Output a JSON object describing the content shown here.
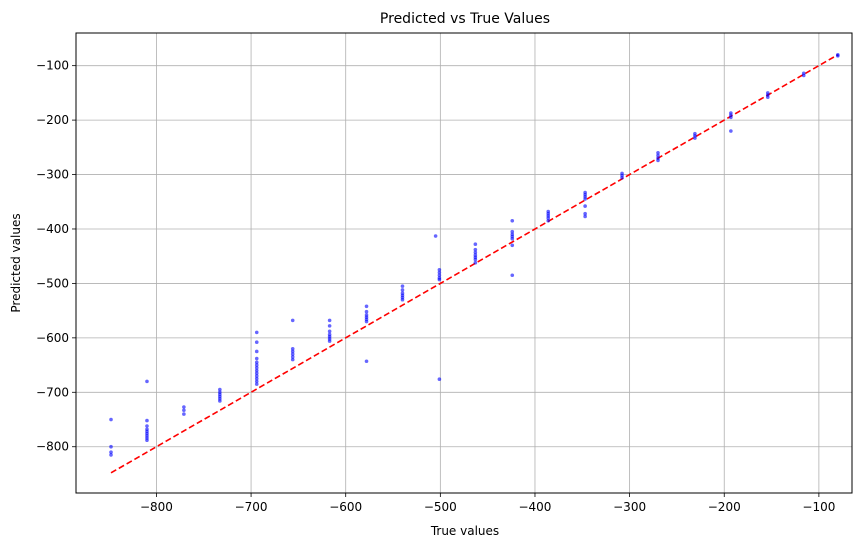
{
  "chart_data": {
    "type": "scatter",
    "title": "Predicted vs True Values",
    "xlabel": "True values",
    "ylabel": "Predicted values",
    "xlim": [
      -885,
      -65
    ],
    "ylim": [
      -885,
      -40
    ],
    "xticks": [
      -800,
      -700,
      -600,
      -500,
      -400,
      -300,
      -200,
      -100
    ],
    "yticks": [
      -800,
      -700,
      -600,
      -500,
      -400,
      -300,
      -200,
      -100
    ],
    "xtick_labels": [
      "−800",
      "−700",
      "−600",
      "−500",
      "−400",
      "−300",
      "−200",
      "−100"
    ],
    "ytick_labels": [
      "−800",
      "−700",
      "−600",
      "−500",
      "−400",
      "−300",
      "−200",
      "−100"
    ],
    "grid": true,
    "point_color": "#0000ff",
    "line_color": "#ff0000",
    "reference_line": {
      "style": "dashed",
      "from": [
        -848,
        -848
      ],
      "to": [
        -80,
        -80
      ]
    },
    "points": [
      [
        -848,
        -750
      ],
      [
        -848,
        -800
      ],
      [
        -848,
        -810
      ],
      [
        -848,
        -815
      ],
      [
        -810,
        -680
      ],
      [
        -810,
        -752
      ],
      [
        -810,
        -762
      ],
      [
        -810,
        -768
      ],
      [
        -810,
        -772
      ],
      [
        -810,
        -776
      ],
      [
        -810,
        -780
      ],
      [
        -810,
        -784
      ],
      [
        -810,
        -788
      ],
      [
        -771,
        -727
      ],
      [
        -771,
        -733
      ],
      [
        -771,
        -740
      ],
      [
        -733,
        -695
      ],
      [
        -733,
        -700
      ],
      [
        -733,
        -704
      ],
      [
        -733,
        -708
      ],
      [
        -733,
        -712
      ],
      [
        -733,
        -716
      ],
      [
        -694,
        -590
      ],
      [
        -694,
        -608
      ],
      [
        -694,
        -625
      ],
      [
        -694,
        -638
      ],
      [
        -694,
        -645
      ],
      [
        -694,
        -650
      ],
      [
        -694,
        -655
      ],
      [
        -694,
        -660
      ],
      [
        -694,
        -665
      ],
      [
        -694,
        -670
      ],
      [
        -694,
        -675
      ],
      [
        -694,
        -680
      ],
      [
        -694,
        -685
      ],
      [
        -656,
        -568
      ],
      [
        -656,
        -620
      ],
      [
        -656,
        -625
      ],
      [
        -656,
        -630
      ],
      [
        -656,
        -635
      ],
      [
        -656,
        -640
      ],
      [
        -617,
        -568
      ],
      [
        -617,
        -578
      ],
      [
        -617,
        -588
      ],
      [
        -617,
        -594
      ],
      [
        -617,
        -598
      ],
      [
        -617,
        -602
      ],
      [
        -617,
        -606
      ],
      [
        -578,
        -542
      ],
      [
        -578,
        -552
      ],
      [
        -578,
        -558
      ],
      [
        -578,
        -562
      ],
      [
        -578,
        -566
      ],
      [
        -578,
        -570
      ],
      [
        -578,
        -643
      ],
      [
        -540,
        -505
      ],
      [
        -540,
        -512
      ],
      [
        -540,
        -518
      ],
      [
        -540,
        -522
      ],
      [
        -540,
        -526
      ],
      [
        -540,
        -530
      ],
      [
        -505,
        -413
      ],
      [
        -501,
        -475
      ],
      [
        -501,
        -480
      ],
      [
        -501,
        -485
      ],
      [
        -501,
        -490
      ],
      [
        -501,
        -493
      ],
      [
        -501,
        -676
      ],
      [
        -463,
        -428
      ],
      [
        -463,
        -438
      ],
      [
        -463,
        -443
      ],
      [
        -463,
        -448
      ],
      [
        -463,
        -452
      ],
      [
        -463,
        -456
      ],
      [
        -463,
        -462
      ],
      [
        -424,
        -385
      ],
      [
        -424,
        -405
      ],
      [
        -424,
        -410
      ],
      [
        -424,
        -414
      ],
      [
        -424,
        -418
      ],
      [
        -424,
        -430
      ],
      [
        -424,
        -485
      ],
      [
        -386,
        -368
      ],
      [
        -386,
        -372
      ],
      [
        -386,
        -376
      ],
      [
        -386,
        -380
      ],
      [
        -386,
        -385
      ],
      [
        -347,
        -333
      ],
      [
        -347,
        -337
      ],
      [
        -347,
        -341
      ],
      [
        -347,
        -345
      ],
      [
        -347,
        -358
      ],
      [
        -347,
        -372
      ],
      [
        -347,
        -377
      ],
      [
        -308,
        -298
      ],
      [
        -308,
        -302
      ],
      [
        -308,
        -306
      ],
      [
        -270,
        -260
      ],
      [
        -270,
        -265
      ],
      [
        -270,
        -270
      ],
      [
        -270,
        -274
      ],
      [
        -231,
        -225
      ],
      [
        -231,
        -229
      ],
      [
        -231,
        -233
      ],
      [
        -193,
        -187
      ],
      [
        -193,
        -191
      ],
      [
        -193,
        -195
      ],
      [
        -193,
        -220
      ],
      [
        -154,
        -150
      ],
      [
        -154,
        -154
      ],
      [
        -154,
        -158
      ],
      [
        -116,
        -114
      ],
      [
        -116,
        -118
      ],
      [
        -80,
        -80
      ],
      [
        -80,
        -82
      ]
    ]
  }
}
